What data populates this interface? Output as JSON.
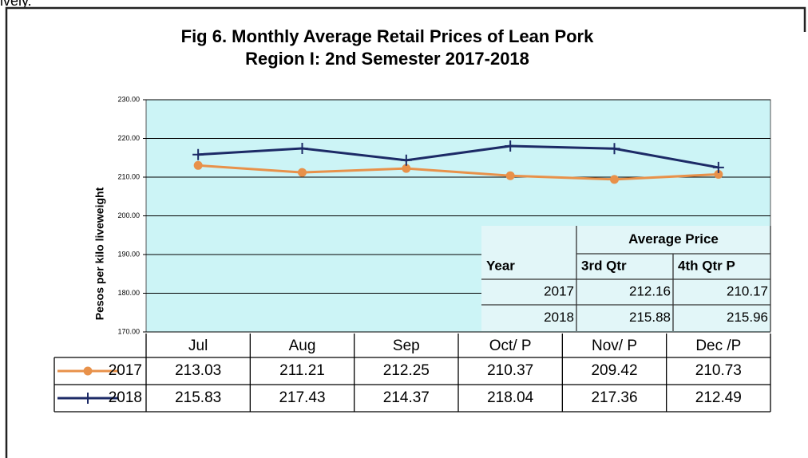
{
  "fragment": "ively.",
  "chart_data": {
    "type": "line",
    "title": "Fig 6. Monthly Average Retail Prices of Lean Pork",
    "subtitle": "Region I: 2nd Semester 2017-2018",
    "y_label": "Pesos per kilo liveweight",
    "categories": [
      "Jul",
      "Aug",
      "Sep",
      "Oct/ P",
      "Nov/ P",
      "Dec /P"
    ],
    "series": [
      {
        "name": "2017",
        "color": "#e8914a",
        "marker": "circle",
        "values": [
          213.03,
          211.21,
          212.25,
          210.37,
          209.42,
          210.73
        ]
      },
      {
        "name": "2018",
        "color": "#1c2a66",
        "marker": "plus",
        "values": [
          215.83,
          217.43,
          214.37,
          218.04,
          217.36,
          212.49
        ]
      }
    ],
    "ylim": [
      170,
      230
    ],
    "yticks": [
      {
        "value": 170,
        "label": "170.00"
      },
      {
        "value": 180,
        "label": "180.00"
      },
      {
        "value": 190,
        "label": "190.00"
      },
      {
        "value": 200,
        "label": "200.00"
      },
      {
        "value": 210,
        "label": "210.00"
      },
      {
        "value": 220,
        "label": "220.00"
      },
      {
        "value": 230,
        "label": "230.00"
      }
    ],
    "grid": true,
    "plot_background": "#ccf4f6"
  },
  "inset_table": {
    "header": "Average Price",
    "columns": [
      "Year",
      "3rd Qtr",
      "4th Qtr P"
    ],
    "rows": [
      [
        2017,
        212.16,
        210.17
      ],
      [
        2018,
        215.88,
        215.96
      ]
    ]
  }
}
